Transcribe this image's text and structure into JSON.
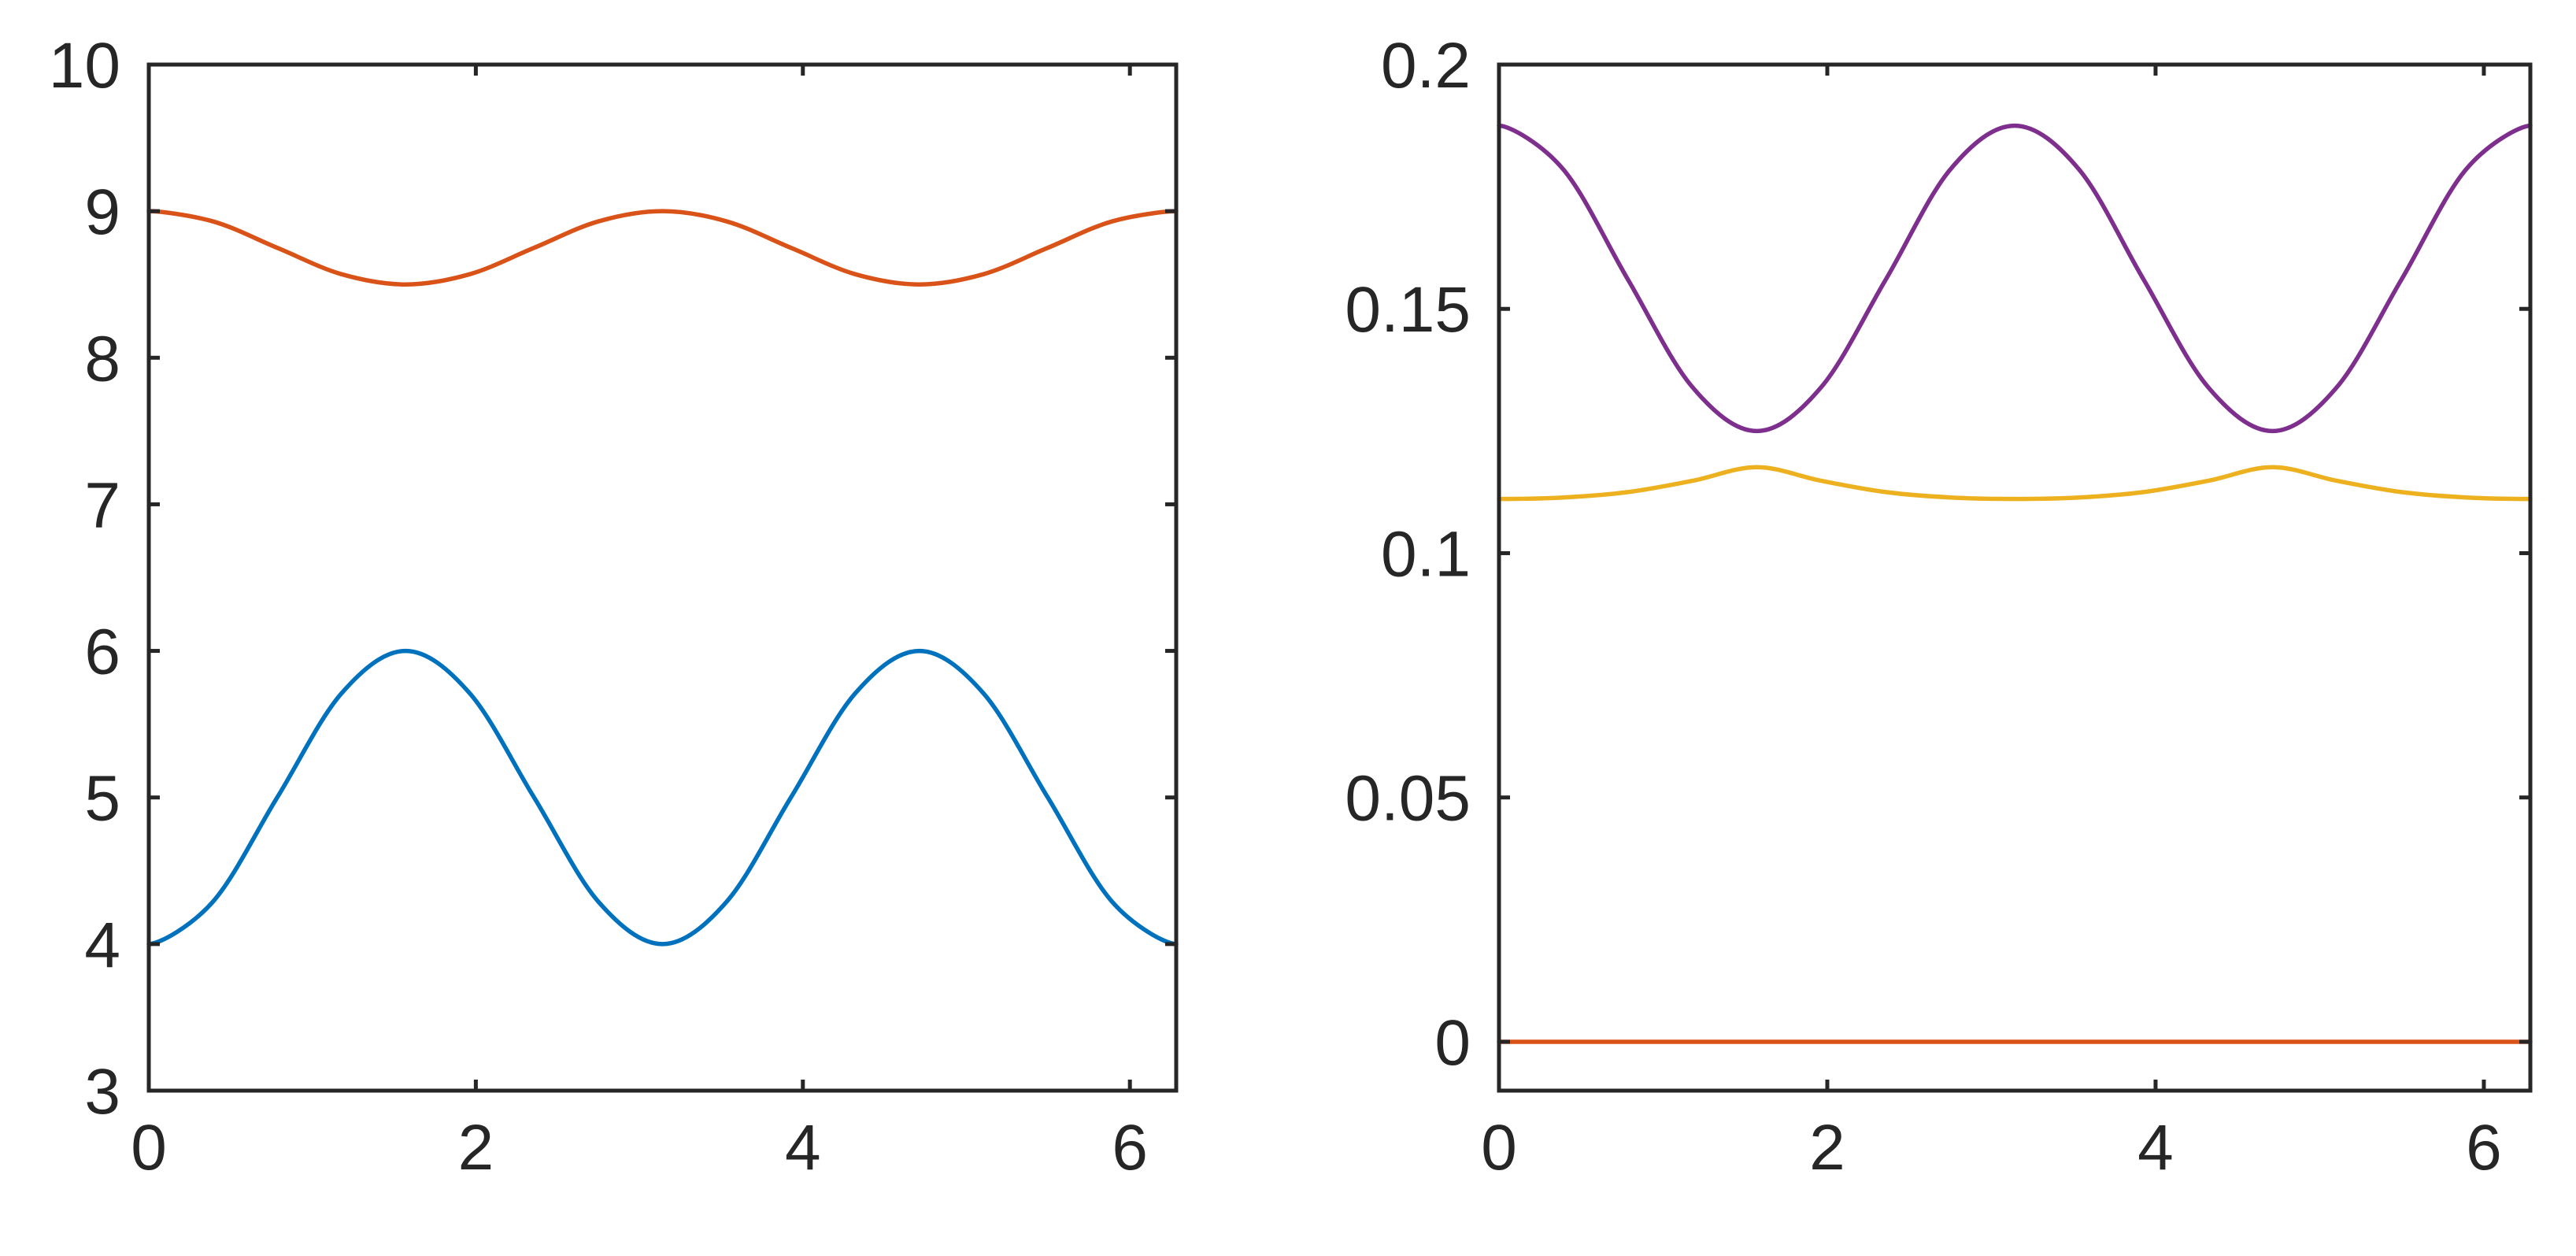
{
  "chart_data": [
    {
      "type": "line",
      "title": "",
      "xlabel": "",
      "ylabel": "",
      "xlim": [
        0,
        6.2832
      ],
      "ylim": [
        3,
        10
      ],
      "grid": false,
      "xticks": [
        0,
        2,
        4,
        6
      ],
      "xtick_labels": [
        "0",
        "2",
        "4",
        "6"
      ],
      "yticks": [
        3,
        4,
        5,
        6,
        7,
        8,
        9,
        10
      ],
      "ytick_labels": [
        "3",
        "4",
        "5",
        "6",
        "7",
        "8",
        "9",
        "10"
      ],
      "series": [
        {
          "color": "#0072BD",
          "x": [
            0,
            0.3927,
            0.7854,
            1.1781,
            1.5708,
            1.9635,
            2.3562,
            2.7489,
            3.1416,
            3.5343,
            3.927,
            4.3197,
            4.7124,
            5.1051,
            5.4978,
            5.8905,
            6.2832
          ],
          "y": [
            4.0,
            4.29,
            5.0,
            5.71,
            6.0,
            5.71,
            5.0,
            4.29,
            4.0,
            4.29,
            5.0,
            5.71,
            6.0,
            5.71,
            5.0,
            4.29,
            4.0
          ]
        },
        {
          "color": "#D95319",
          "x": [
            0,
            0.3927,
            0.7854,
            1.1781,
            1.5708,
            1.9635,
            2.3562,
            2.7489,
            3.1416,
            3.5343,
            3.927,
            4.3197,
            4.7124,
            5.1051,
            5.4978,
            5.8905,
            6.2832
          ],
          "y": [
            9.0,
            8.93,
            8.75,
            8.57,
            8.5,
            8.57,
            8.75,
            8.93,
            9.0,
            8.93,
            8.75,
            8.57,
            8.5,
            8.57,
            8.75,
            8.93,
            9.0
          ]
        }
      ]
    },
    {
      "type": "line",
      "title": "",
      "xlabel": "",
      "ylabel": "",
      "xlim": [
        0,
        6.2832
      ],
      "ylim": [
        -0.01,
        0.2
      ],
      "grid": false,
      "xticks": [
        0,
        2,
        4,
        6
      ],
      "xtick_labels": [
        "0",
        "2",
        "4",
        "6"
      ],
      "yticks": [
        0,
        0.05,
        0.1,
        0.15,
        0.2
      ],
      "ytick_labels": [
        "0",
        "0.05",
        "0.1",
        "0.15",
        "0.2"
      ],
      "series": [
        {
          "color": "#7E2F8E",
          "x": [
            0,
            0.3927,
            0.7854,
            1.1781,
            1.5708,
            1.9635,
            2.3562,
            2.7489,
            3.1416,
            3.5343,
            3.927,
            4.3197,
            4.7124,
            5.1051,
            5.4978,
            5.8905,
            6.2832
          ],
          "y": [
            0.1875,
            0.1785,
            0.156,
            0.134,
            0.125,
            0.134,
            0.156,
            0.1785,
            0.1875,
            0.1785,
            0.156,
            0.134,
            0.125,
            0.134,
            0.156,
            0.1785,
            0.1875
          ]
        },
        {
          "color": "#EDB120",
          "x": [
            0,
            0.3927,
            0.7854,
            1.1781,
            1.5708,
            1.9635,
            2.3562,
            2.7489,
            3.1416,
            3.5343,
            3.927,
            4.3197,
            4.7124,
            5.1051,
            5.4978,
            5.8905,
            6.2832
          ],
          "y": [
            0.1111,
            0.1114,
            0.1125,
            0.1148,
            0.1176,
            0.1148,
            0.1125,
            0.1114,
            0.1111,
            0.1114,
            0.1125,
            0.1148,
            0.1176,
            0.1148,
            0.1125,
            0.1114,
            0.1111
          ]
        },
        {
          "color": "#D95319",
          "x": [
            0,
            6.2832
          ],
          "y": [
            0,
            0
          ]
        }
      ]
    }
  ]
}
